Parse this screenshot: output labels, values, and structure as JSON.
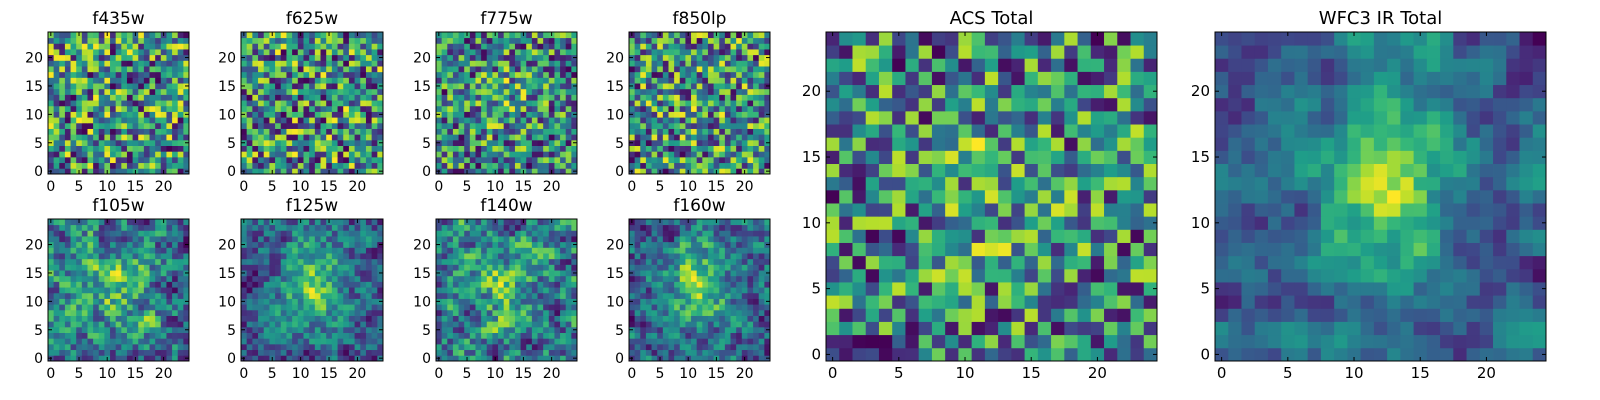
{
  "chart_data": [
    {
      "type": "heatmap",
      "title": "f435w",
      "xticks": [
        "0",
        "5",
        "10",
        "15",
        "20"
      ],
      "yticks": [
        "0",
        "5",
        "10",
        "15",
        "20"
      ],
      "xlim": [
        0,
        25
      ],
      "ylim": [
        0,
        25
      ],
      "colormap": "viridis",
      "seed": 11,
      "smooth": 0,
      "center_boost": 0.0,
      "note_values": "pixel-level noise map, 25x25 cells"
    },
    {
      "type": "heatmap",
      "title": "f625w",
      "xticks": [
        "0",
        "5",
        "10",
        "15",
        "20"
      ],
      "yticks": [
        "0",
        "5",
        "10",
        "15",
        "20"
      ],
      "xlim": [
        0,
        25
      ],
      "ylim": [
        0,
        25
      ],
      "colormap": "viridis",
      "seed": 23,
      "smooth": 0,
      "center_boost": 0.0
    },
    {
      "type": "heatmap",
      "title": "f775w",
      "xticks": [
        "0",
        "5",
        "10",
        "15",
        "20"
      ],
      "yticks": [
        "0",
        "5",
        "10",
        "15",
        "20"
      ],
      "xlim": [
        0,
        25
      ],
      "ylim": [
        0,
        25
      ],
      "colormap": "viridis",
      "seed": 37,
      "smooth": 0,
      "center_boost": 0.15
    },
    {
      "type": "heatmap",
      "title": "f850lp",
      "xticks": [
        "0",
        "5",
        "10",
        "15",
        "20"
      ],
      "yticks": [
        "0",
        "5",
        "10",
        "15",
        "20"
      ],
      "xlim": [
        0,
        25
      ],
      "ylim": [
        0,
        25
      ],
      "colormap": "viridis",
      "seed": 41,
      "smooth": 0,
      "center_boost": 0.05
    },
    {
      "type": "heatmap",
      "title": "f105w",
      "xticks": [
        "0",
        "5",
        "10",
        "15",
        "20"
      ],
      "yticks": [
        "0",
        "5",
        "10",
        "15",
        "20"
      ],
      "xlim": [
        0,
        25
      ],
      "ylim": [
        0,
        25
      ],
      "colormap": "viridis",
      "seed": 53,
      "smooth": 1,
      "center_boost": 0.25
    },
    {
      "type": "heatmap",
      "title": "f125w",
      "xticks": [
        "0",
        "5",
        "10",
        "15",
        "20"
      ],
      "yticks": [
        "0",
        "5",
        "10",
        "15",
        "20"
      ],
      "xlim": [
        0,
        25
      ],
      "ylim": [
        0,
        25
      ],
      "colormap": "viridis",
      "seed": 67,
      "smooth": 1,
      "center_boost": 0.55
    },
    {
      "type": "heatmap",
      "title": "f140w",
      "xticks": [
        "0",
        "5",
        "10",
        "15",
        "20"
      ],
      "yticks": [
        "0",
        "5",
        "10",
        "15",
        "20"
      ],
      "xlim": [
        0,
        25
      ],
      "ylim": [
        0,
        25
      ],
      "colormap": "viridis",
      "seed": 71,
      "smooth": 1,
      "center_boost": 0.3
    },
    {
      "type": "heatmap",
      "title": "f160w",
      "xticks": [
        "0",
        "5",
        "10",
        "15",
        "20"
      ],
      "yticks": [
        "0",
        "5",
        "10",
        "15",
        "20"
      ],
      "xlim": [
        0,
        25
      ],
      "ylim": [
        0,
        25
      ],
      "colormap": "viridis",
      "seed": 89,
      "smooth": 1,
      "center_boost": 0.55
    },
    {
      "type": "heatmap",
      "title": "ACS Total",
      "xticks": [
        "0",
        "5",
        "10",
        "15",
        "20"
      ],
      "yticks": [
        "0",
        "5",
        "10",
        "15",
        "20"
      ],
      "xlim": [
        0,
        25
      ],
      "ylim": [
        0,
        25
      ],
      "colormap": "viridis",
      "seed": 97,
      "smooth": 0,
      "center_boost": 0.12
    },
    {
      "type": "heatmap",
      "title": "WFC3 IR Total",
      "xticks": [
        "0",
        "5",
        "10",
        "15",
        "20"
      ],
      "yticks": [
        "0",
        "5",
        "10",
        "15",
        "20"
      ],
      "xlim": [
        0,
        25
      ],
      "ylim": [
        0,
        25
      ],
      "colormap": "viridis",
      "seed": 103,
      "smooth": 2,
      "center_boost": 0.7
    }
  ]
}
